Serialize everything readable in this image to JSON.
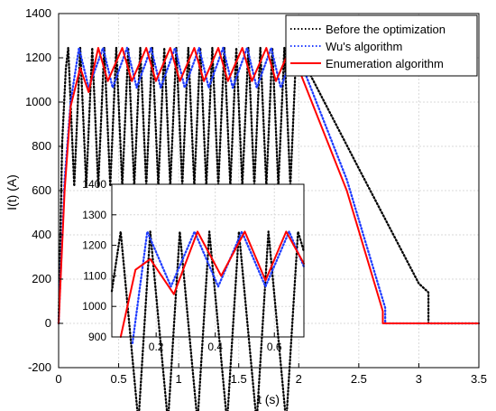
{
  "chart_data": [
    {
      "type": "line",
      "title": "",
      "xlabel": "t (s)",
      "ylabel": "I(t) (A)",
      "xlim": [
        0,
        3.5
      ],
      "ylim": [
        -200,
        1400
      ],
      "xticks": [
        0,
        0.5,
        1,
        1.5,
        2,
        2.5,
        3,
        3.5
      ],
      "xtick_labels": [
        "0",
        "0.5",
        "1",
        "1.5",
        "2",
        "2.5",
        "3",
        "3.5"
      ],
      "yticks": [
        -200,
        0,
        200,
        400,
        600,
        800,
        1000,
        1200,
        1400
      ],
      "ytick_labels": [
        "-200",
        "0",
        "200",
        "400",
        "600",
        "800",
        "1000",
        "1200",
        "1400"
      ],
      "grid": true,
      "legend_position": "top-right",
      "series": [
        {
          "name": "Before the optimization",
          "color": "#000000",
          "style": "dotted",
          "period": 0.1,
          "peak": 1245,
          "tail_end": 3.08,
          "tail_value": 140,
          "points": [
            [
              0,
              0
            ],
            [
              0.03,
              820
            ],
            [
              0.06,
              1150
            ],
            [
              0.08,
              1245
            ],
            [
              0.14,
              620
            ],
            [
              0.18,
              1245
            ],
            [
              2.05,
              1245
            ],
            [
              2.5,
              700
            ],
            [
              3.0,
              180
            ],
            [
              3.08,
              140
            ],
            [
              3.08,
              0
            ],
            [
              3.5,
              0
            ]
          ]
        },
        {
          "name": "Wu's algorithm",
          "color": "#1f3cff",
          "style": "dotted",
          "period": 0.2,
          "peak": 1245,
          "tail_end": 2.72,
          "tail_value": 70,
          "points": [
            [
              0,
              0
            ],
            [
              0.05,
              650
            ],
            [
              0.1,
              1000
            ],
            [
              0.17,
              1245
            ],
            [
              0.23,
              1070
            ],
            [
              0.28,
              1245
            ],
            [
              2.05,
              1245
            ],
            [
              2.4,
              650
            ],
            [
              2.72,
              70
            ],
            [
              2.72,
              0
            ],
            [
              3.5,
              0
            ]
          ]
        },
        {
          "name": "Enumeration algorithm",
          "color": "#ff0000",
          "style": "solid",
          "period": 0.2,
          "peak": 1245,
          "tail_end": 2.7,
          "tail_value": 55,
          "points": [
            [
              0,
              0
            ],
            [
              0.05,
              600
            ],
            [
              0.1,
              980
            ],
            [
              0.18,
              1155
            ],
            [
              0.25,
              1045
            ],
            [
              0.33,
              1245
            ],
            [
              2.07,
              1245
            ],
            [
              2.4,
              600
            ],
            [
              2.7,
              55
            ],
            [
              2.7,
              0
            ],
            [
              3.5,
              0
            ]
          ]
        }
      ]
    },
    {
      "type": "line",
      "title": "",
      "inset": true,
      "xlim": [
        0.05,
        0.7
      ],
      "ylim": [
        900,
        1400
      ],
      "xticks": [
        0.2,
        0.4,
        0.6
      ],
      "xtick_labels": [
        "0.2",
        "0.4",
        "0.6"
      ],
      "yticks": [
        900,
        1000,
        1100,
        1200,
        1300,
        1400
      ],
      "ytick_labels": [
        "900",
        "1000",
        "1100",
        "1200",
        "1300",
        "1400"
      ],
      "grid": true,
      "series": [
        {
          "name": "Before the optimization",
          "color": "#000000",
          "style": "dotted",
          "points": [
            [
              0.05,
              1050
            ],
            [
              0.08,
              1245
            ],
            [
              0.14,
              620
            ],
            [
              0.18,
              1245
            ],
            [
              0.24,
              620
            ],
            [
              0.28,
              1245
            ],
            [
              0.34,
              620
            ],
            [
              0.38,
              1245
            ],
            [
              0.44,
              620
            ],
            [
              0.48,
              1245
            ],
            [
              0.54,
              620
            ],
            [
              0.58,
              1245
            ],
            [
              0.64,
              620
            ],
            [
              0.68,
              1245
            ],
            [
              0.7,
              1180
            ]
          ]
        },
        {
          "name": "Wu's algorithm",
          "color": "#1f3cff",
          "style": "dotted",
          "points": [
            [
              0.12,
              880
            ],
            [
              0.17,
              1245
            ],
            [
              0.25,
              1065
            ],
            [
              0.33,
              1245
            ],
            [
              0.41,
              1065
            ],
            [
              0.49,
              1245
            ],
            [
              0.57,
              1065
            ],
            [
              0.65,
              1245
            ],
            [
              0.7,
              1130
            ]
          ]
        },
        {
          "name": "Enumeration algorithm",
          "color": "#ff0000",
          "style": "solid",
          "points": [
            [
              0.08,
              900
            ],
            [
              0.13,
              1120
            ],
            [
              0.18,
              1155
            ],
            [
              0.26,
              1040
            ],
            [
              0.34,
              1245
            ],
            [
              0.42,
              1100
            ],
            [
              0.5,
              1245
            ],
            [
              0.57,
              1085
            ],
            [
              0.64,
              1245
            ],
            [
              0.7,
              1140
            ]
          ]
        }
      ]
    }
  ]
}
